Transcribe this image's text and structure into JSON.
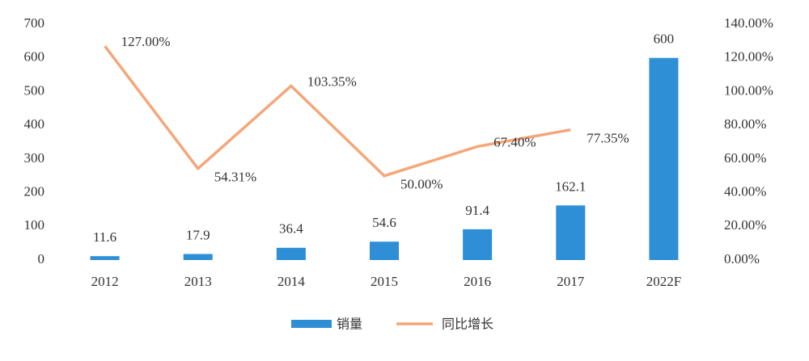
{
  "chart_data": {
    "type": "bar",
    "categories": [
      "2012",
      "2013",
      "2014",
      "2015",
      "2016",
      "2017",
      "2022F"
    ],
    "series": [
      {
        "name": "销量",
        "type": "bar",
        "color": "#2e8fd6",
        "values": [
          11.6,
          17.9,
          36.4,
          54.6,
          91.4,
          162.1,
          600
        ]
      },
      {
        "name": "同比增长",
        "type": "line",
        "axis": "y2",
        "color": "#f4a77a",
        "values": [
          127.0,
          54.31,
          103.35,
          50.0,
          67.4,
          77.35,
          null
        ],
        "value_labels": [
          "127.00%",
          "54.31%",
          "103.35%",
          "50.00%",
          "67.40%",
          "77.35%",
          null
        ]
      }
    ],
    "ylim": [
      0,
      700
    ],
    "yticks": [
      0,
      100,
      200,
      300,
      400,
      500,
      600,
      700
    ],
    "y2lim": [
      0,
      140
    ],
    "y2ticks": [
      {
        "value": 0,
        "label": "0.00%"
      },
      {
        "value": 20,
        "label": "20.00%"
      },
      {
        "value": 40,
        "label": "40.00%"
      },
      {
        "value": 60,
        "label": "60.00%"
      },
      {
        "value": 80,
        "label": "80.00%"
      },
      {
        "value": 100,
        "label": "100.00%"
      },
      {
        "value": 120,
        "label": "120.00%"
      },
      {
        "value": 140,
        "label": "140.00%"
      }
    ],
    "grid": false,
    "legend": "bottom"
  }
}
